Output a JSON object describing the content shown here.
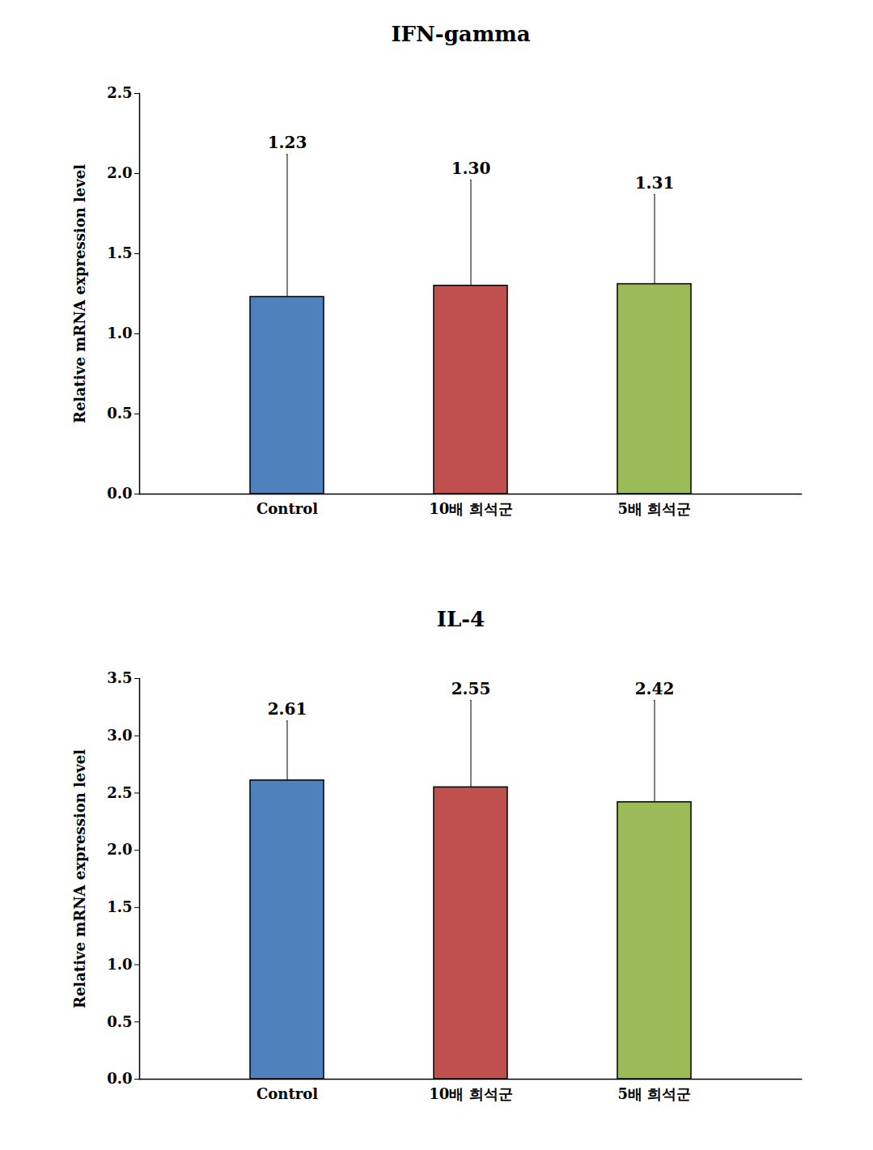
{
  "chart_data": [
    {
      "type": "bar",
      "title": "IFN-gamma",
      "y_label": "Relative mRNA expression level",
      "categories": [
        "Control",
        "10배 희석군",
        "5배 희석군"
      ],
      "values": [
        1.23,
        1.3,
        1.31
      ],
      "value_labels": [
        "1.23",
        "1.30",
        "1.31"
      ],
      "errors": [
        0.89,
        0.66,
        0.56
      ],
      "colors": [
        "#4f81bd",
        "#c0504d",
        "#9bbb59"
      ],
      "ylim": [
        0,
        2.5
      ],
      "yticks": [
        {
          "value": 0,
          "label": "0.0"
        },
        0.5,
        {
          "value": 1,
          "label": "1.0"
        },
        1.5,
        {
          "value": 2,
          "label": "2.0"
        },
        2.5
      ],
      "grid": false,
      "data_labels": true
    },
    {
      "type": "bar",
      "title": "IL-4",
      "y_label": "Relative mRNA expression level",
      "categories": [
        "Control",
        "10배 희석군",
        "5배 희석군"
      ],
      "values": [
        2.61,
        2.55,
        2.42
      ],
      "value_labels": [
        "2.61",
        "2.55",
        "2.42"
      ],
      "errors": [
        0.52,
        0.76,
        0.89
      ],
      "colors": [
        "#4f81bd",
        "#c0504d",
        "#9bbb59"
      ],
      "ylim": [
        0,
        3.5
      ],
      "yticks": [
        {
          "value": 0,
          "label": "0.0"
        },
        0.5,
        {
          "value": 1,
          "label": "1.0"
        },
        1.5,
        {
          "value": 2,
          "label": "2.0"
        },
        2.5,
        {
          "value": 3,
          "label": "3.0"
        },
        3.5
      ],
      "grid": false,
      "data_labels": true
    }
  ]
}
